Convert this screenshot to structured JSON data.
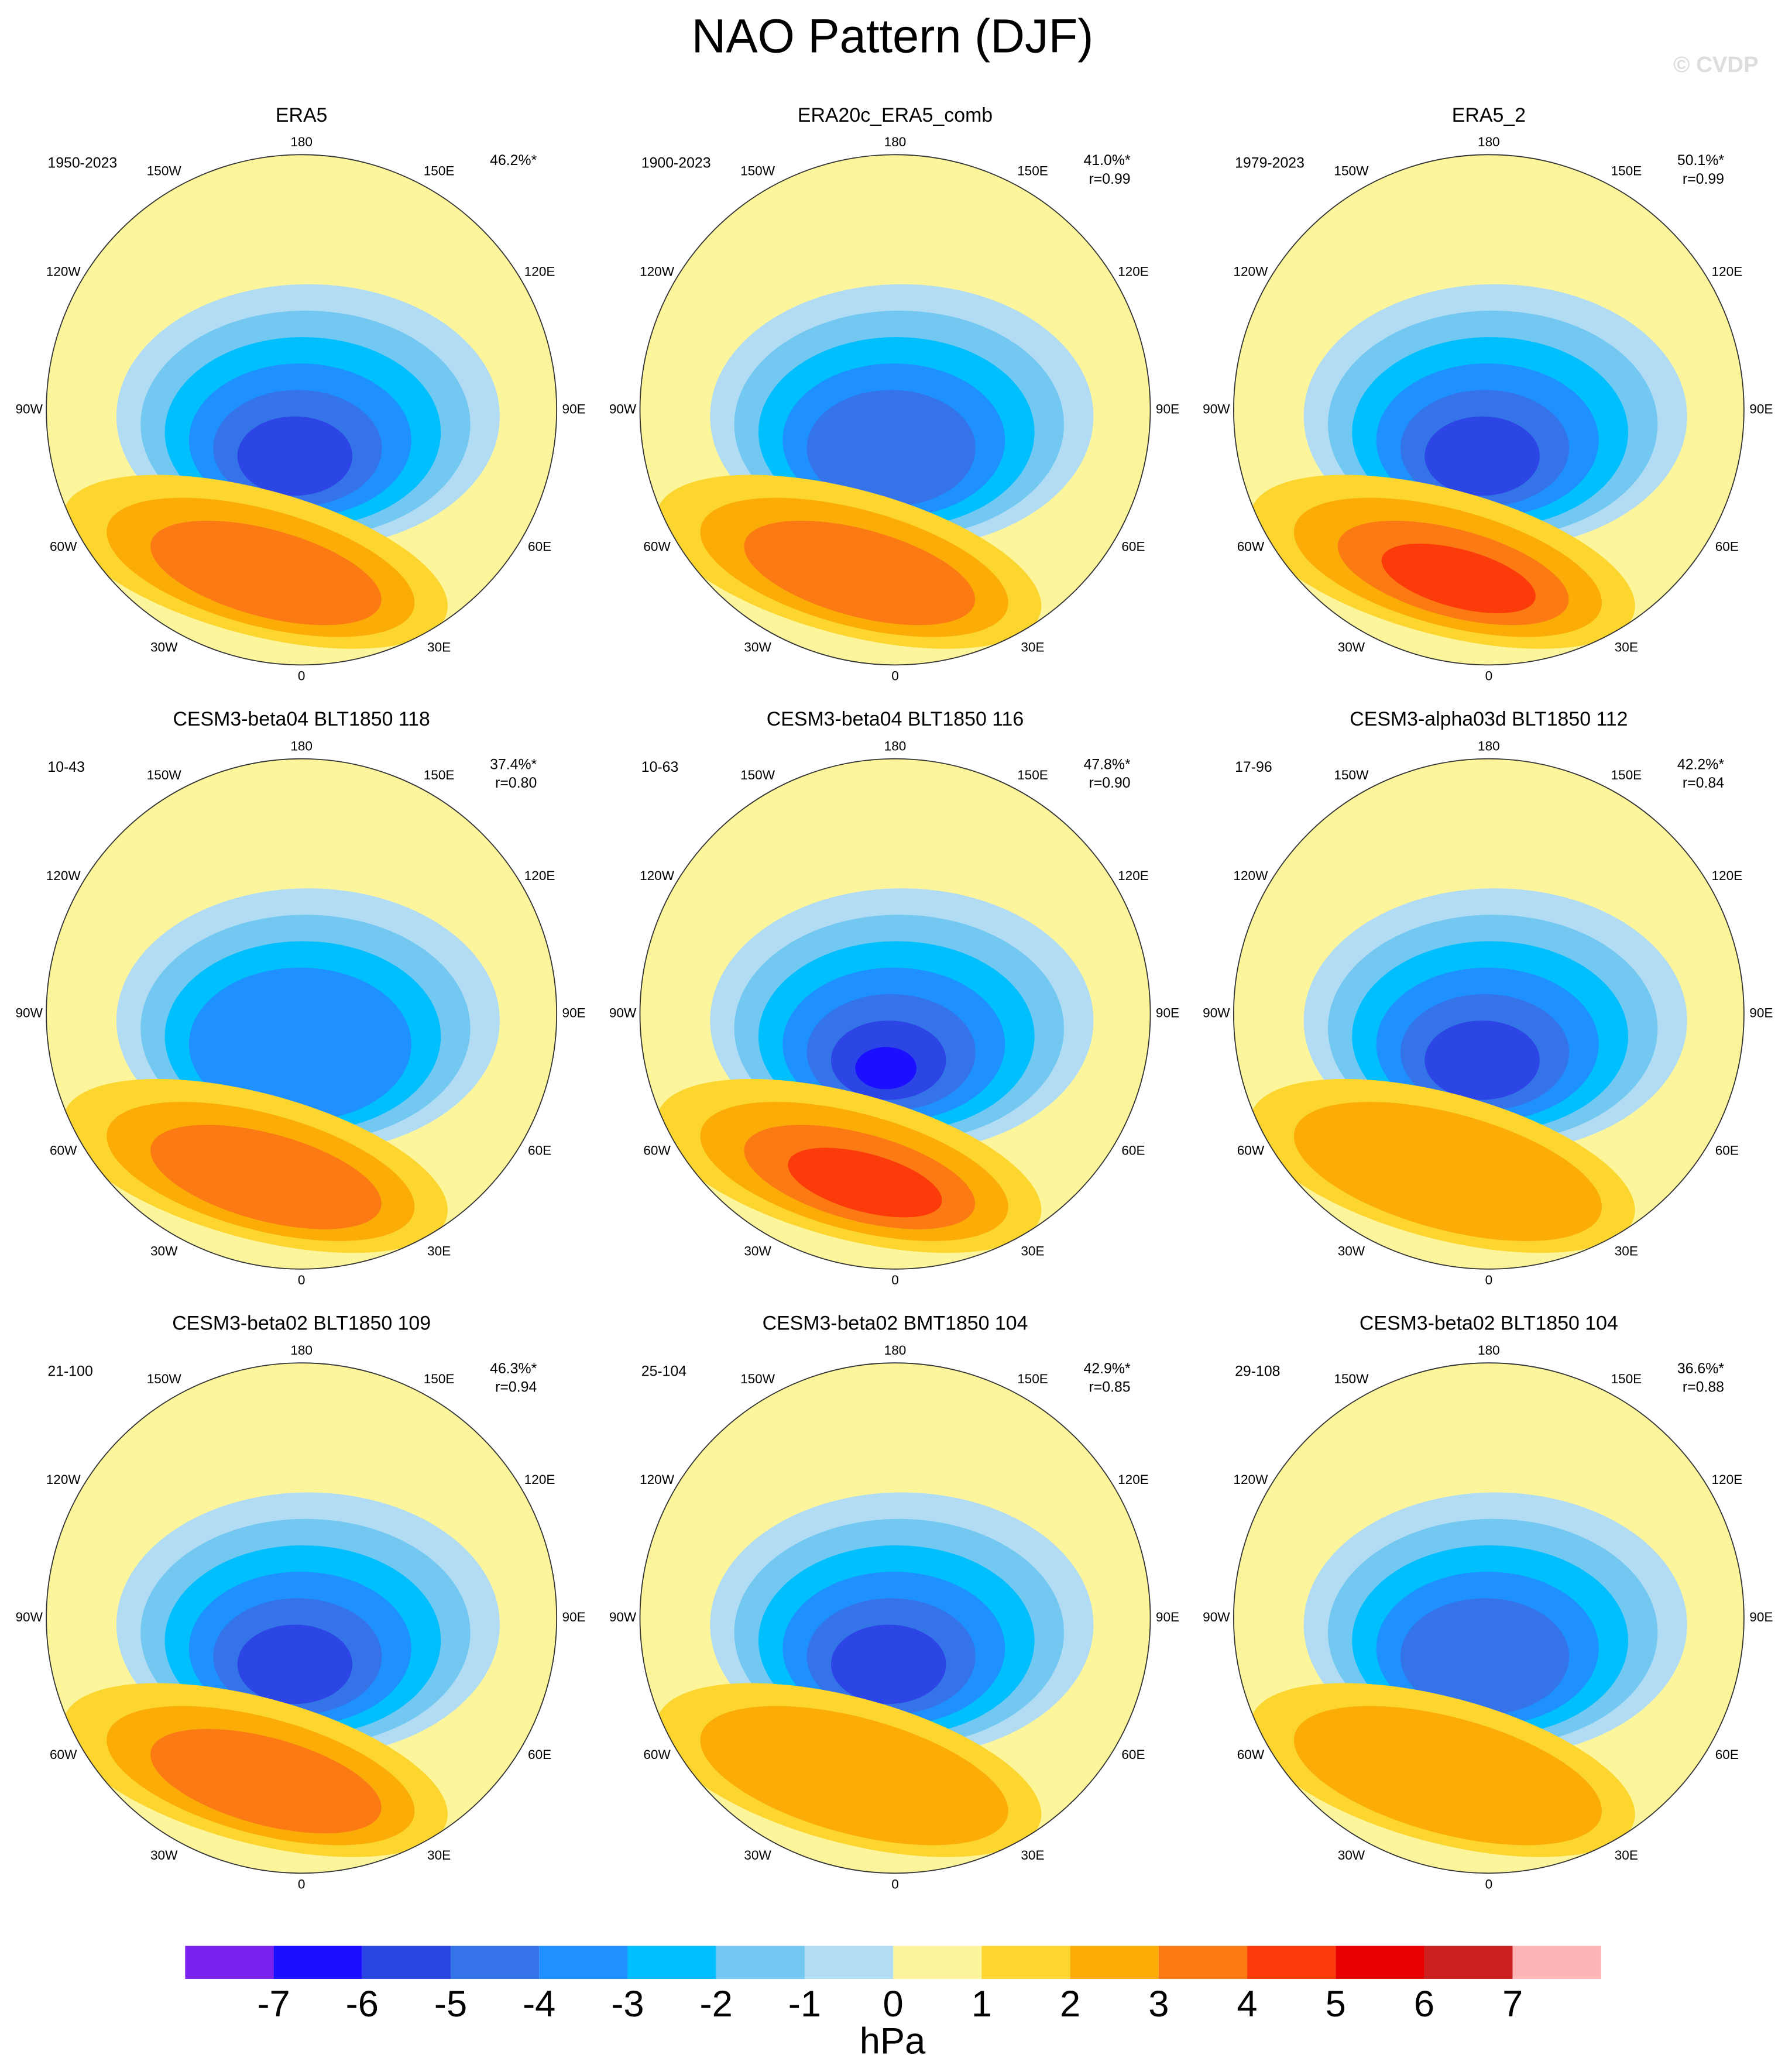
{
  "title": "NAO Pattern (DJF)",
  "watermark": "© CVDP",
  "longitude_labels": [
    "180",
    "150E",
    "120E",
    "90E",
    "60E",
    "30E",
    "0",
    "30W",
    "60W",
    "90W",
    "120W",
    "150W"
  ],
  "panels": [
    {
      "title": "ERA5",
      "period": "1950-2023",
      "variance": "46.2%*"
    },
    {
      "title": "ERA20c_ERA5_comb",
      "period": "1900-2023",
      "variance": "41.0%*",
      "r": "r=0.99"
    },
    {
      "title": "ERA5_2",
      "period": "1979-2023",
      "variance": "50.1%*",
      "r": "r=0.99"
    },
    {
      "title": "CESM3-beta04 BLT1850 118",
      "period": "10-43",
      "variance": "37.4%*",
      "r": "r=0.80"
    },
    {
      "title": "CESM3-beta04 BLT1850 116",
      "period": "10-63",
      "variance": "47.8%*",
      "r": "r=0.90"
    },
    {
      "title": "CESM3-alpha03d BLT1850 112",
      "period": "17-96",
      "variance": "42.2%*",
      "r": "r=0.84"
    },
    {
      "title": "CESM3-beta02 BLT1850 109",
      "period": "21-100",
      "variance": "46.3%*",
      "r": "r=0.94"
    },
    {
      "title": "CESM3-beta02 BMT1850 104",
      "period": "25-104",
      "variance": "42.9%*",
      "r": "r=0.85"
    },
    {
      "title": "CESM3-beta02 BLT1850 104",
      "period": "29-108",
      "variance": "36.6%*",
      "r": "r=0.88"
    }
  ],
  "colorbar": {
    "ticks": [
      -7,
      -6,
      -5,
      -4,
      -3,
      -2,
      -1,
      0,
      1,
      2,
      3,
      4,
      5,
      6,
      7
    ],
    "colors": [
      "#7b22ee",
      "#1a10ff",
      "#2c46e6",
      "#3574e8",
      "#1e90ff",
      "#00bfff",
      "#72c8f0",
      "#b1dcf3",
      "#fcf59c",
      "#fcd52e",
      "#fcac06",
      "#fc7a14",
      "#fc3b0a",
      "#e80000",
      "#cc1f1f",
      "#ffb5b5"
    ],
    "units": "hPa"
  }
}
